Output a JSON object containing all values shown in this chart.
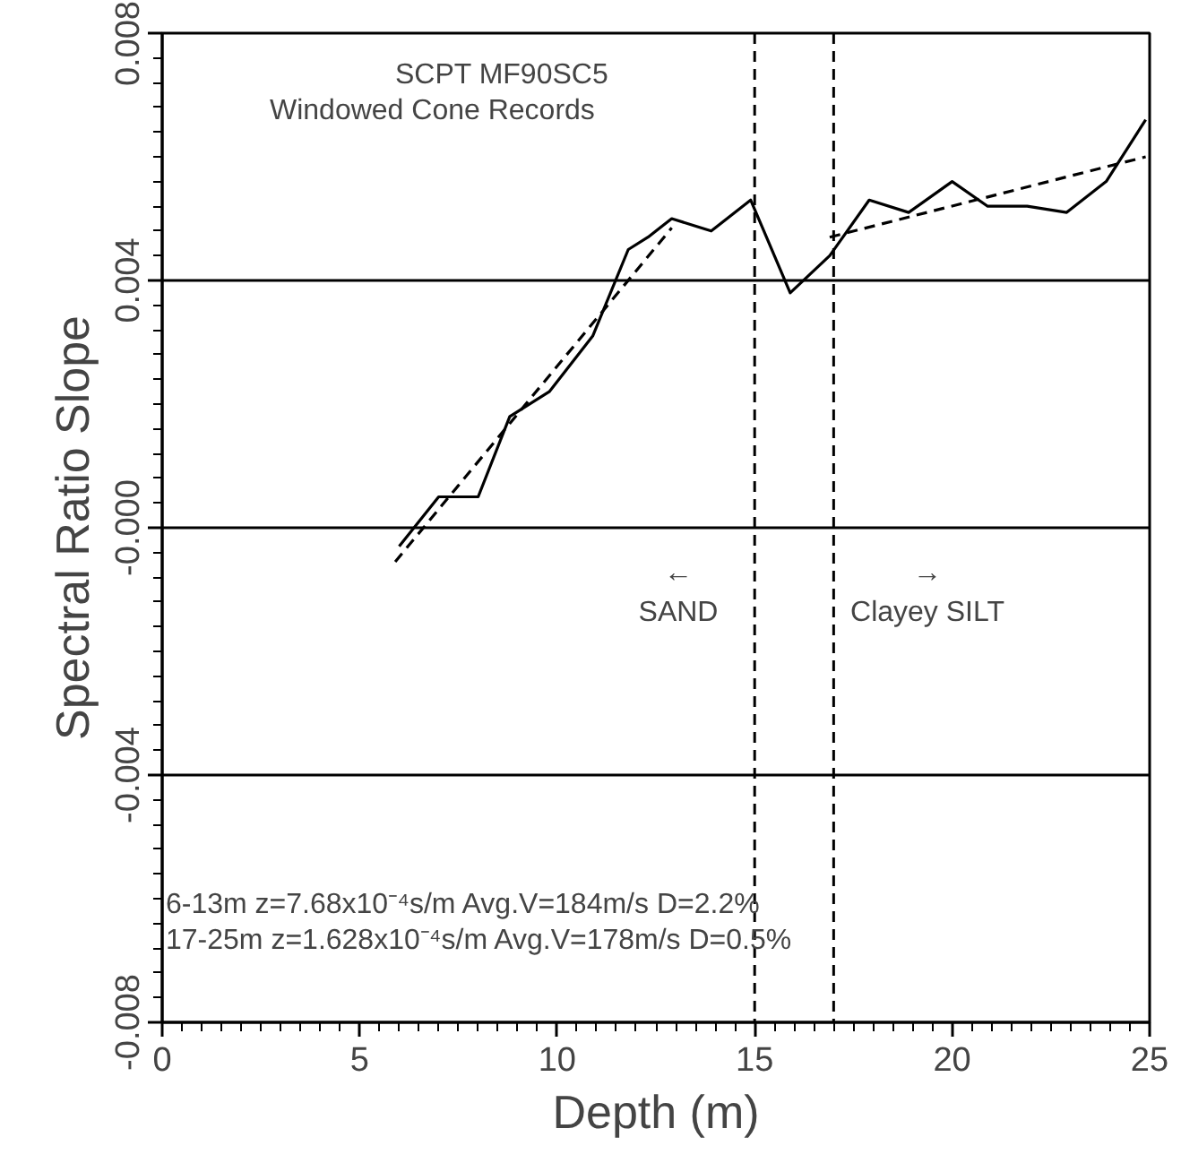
{
  "chart_data": {
    "type": "line",
    "xlabel": "Depth (m)",
    "ylabel": "Spectral Ratio Slope",
    "xlim": [
      0,
      25
    ],
    "xticks": [
      0,
      5,
      10,
      15,
      20,
      25
    ],
    "ylim": [
      -0.008,
      0.008
    ],
    "yticks": [
      {
        "value": -0.008,
        "label": "-0.008"
      },
      {
        "value": -0.004,
        "label": "-0.004"
      },
      {
        "value": 0,
        "label": "-0.000"
      },
      {
        "value": 0.004,
        "label": "0.004"
      },
      {
        "value": 0.008,
        "label": "0.008"
      }
    ],
    "grid": "y",
    "series": [
      {
        "color": "#000000",
        "line_style": "solid",
        "x": [
          6,
          7,
          8,
          8.8,
          9.8,
          10.9,
          11.8,
          12.3,
          12.9,
          13.9,
          14.9,
          15.9,
          16.9,
          17.9,
          18.9,
          20,
          20.9,
          21.9,
          22.9,
          23.9,
          24.9
        ],
        "values": [
          -0.0003,
          0.0005,
          0.0005,
          0.0018,
          0.0022,
          0.0031,
          0.0045,
          0.0047,
          0.005,
          0.0048,
          0.0053,
          0.0038,
          0.0044,
          0.0053,
          0.0051,
          0.0056,
          0.0052,
          0.0052,
          0.0051,
          0.0056,
          0.0066
        ]
      },
      {
        "color": "#000000",
        "line_style": "dashed",
        "x": [
          5.9,
          12.9
        ],
        "values": [
          -0.00055,
          0.00485
        ]
      },
      {
        "color": "#000000",
        "line_style": "dashed",
        "x": [
          16.9,
          24.9
        ],
        "values": [
          0.0047,
          0.006
        ]
      }
    ],
    "ref_lines": [
      {
        "axis": "x",
        "value": 15,
        "line_style": "dashed",
        "color": "#000000"
      },
      {
        "axis": "x",
        "value": 17,
        "line_style": "dashed",
        "color": "#000000"
      }
    ],
    "annotations": [
      "SCPT MF90SC5",
      "Windowed Cone Records",
      "←",
      "SAND",
      "→",
      "Clayey SILT",
      "6-13m z=7.68x10⁻⁴s/m Avg.V=184m/s D=2.2%",
      "17-25m z=1.628x10⁻⁴s/m Avg.V=178m/s D=0.5%"
    ]
  }
}
